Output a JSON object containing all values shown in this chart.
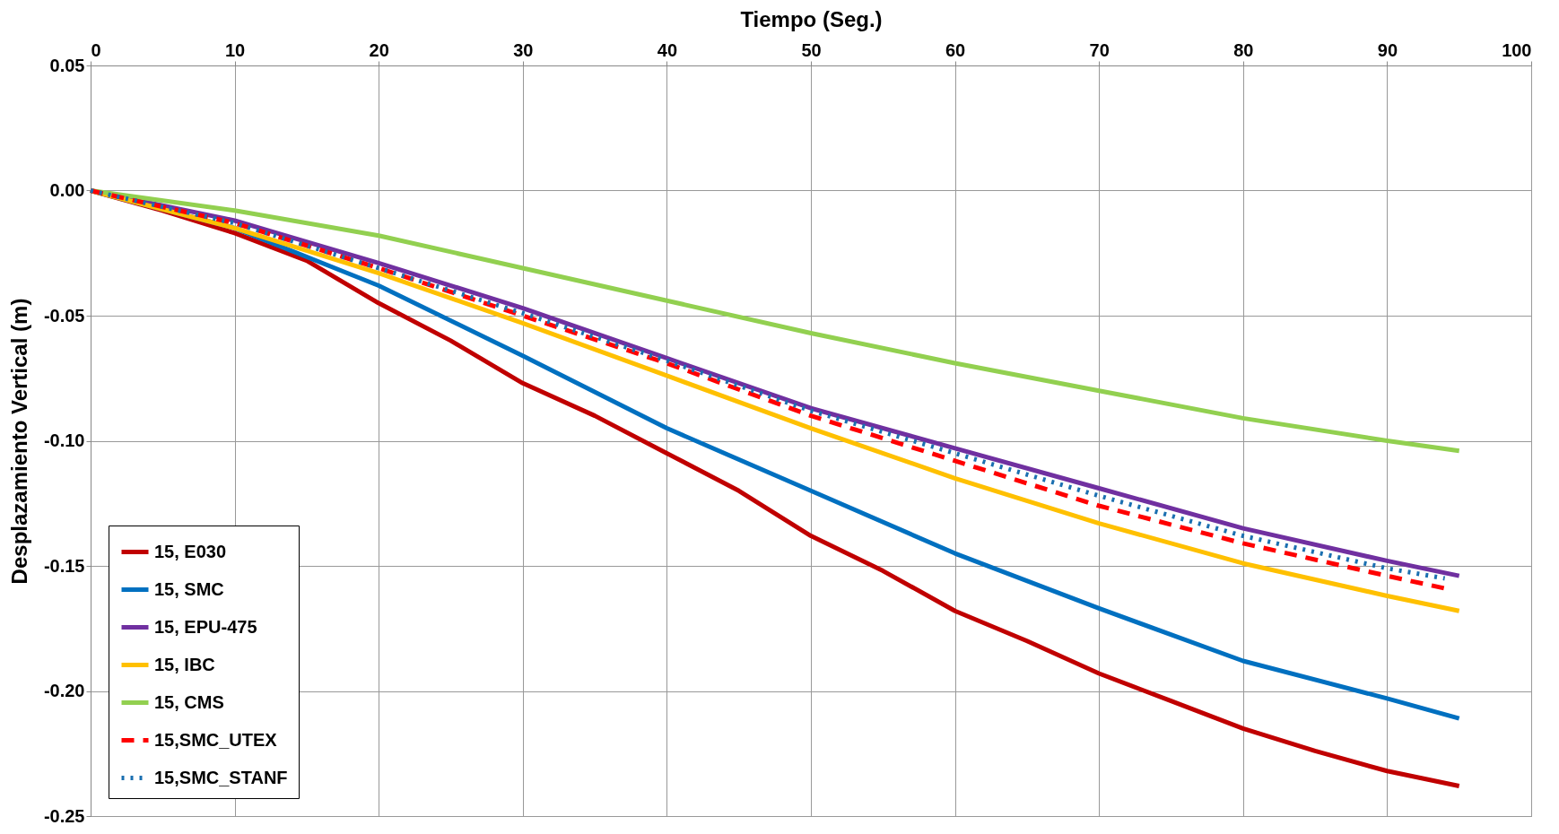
{
  "chart_data": {
    "type": "line",
    "xlabel": "Tiempo (Seg.)",
    "ylabel": "Desplazamiento Vertical (m)",
    "xlim": [
      0,
      100
    ],
    "xticks": [
      0,
      10,
      20,
      30,
      40,
      50,
      60,
      70,
      80,
      90,
      100
    ],
    "ylim": [
      -0.25,
      0.05
    ],
    "yticks": [
      {
        "value": 0.05,
        "label": "0.05"
      },
      {
        "value": 0,
        "label": "0.00"
      },
      {
        "value": -0.05,
        "label": "-0.05"
      },
      {
        "value": -0.1,
        "label": "-0.10"
      },
      {
        "value": -0.15,
        "label": "-0.15"
      },
      {
        "value": -0.2,
        "label": "-0.20"
      },
      {
        "value": -0.25,
        "label": "-0.25"
      }
    ],
    "grid": true,
    "legend": "bottom left",
    "marker": "none",
    "series": [
      {
        "name": "15, E030",
        "color": "#c00000",
        "line_style": "solid",
        "x": [
          0,
          5,
          10,
          15,
          20,
          25,
          30,
          35,
          40,
          45,
          50,
          55,
          60,
          65,
          70,
          75,
          80,
          85,
          90,
          95
        ],
        "values": [
          0,
          -0.008,
          -0.017,
          -0.028,
          -0.045,
          -0.06,
          -0.077,
          -0.09,
          -0.105,
          -0.12,
          -0.138,
          -0.152,
          -0.168,
          -0.18,
          -0.193,
          -0.204,
          -0.215,
          -0.224,
          -0.232,
          -0.238
        ]
      },
      {
        "name": "15, SMC",
        "color": "#0070c0",
        "line_style": "solid",
        "x": [
          0,
          10,
          20,
          30,
          40,
          50,
          60,
          70,
          80,
          90,
          95
        ],
        "values": [
          0,
          -0.015,
          -0.038,
          -0.066,
          -0.095,
          -0.12,
          -0.145,
          -0.167,
          -0.188,
          -0.203,
          -0.211
        ]
      },
      {
        "name": "15, EPU-475",
        "color": "#7030a0",
        "line_style": "solid",
        "x": [
          0,
          10,
          20,
          30,
          40,
          50,
          60,
          70,
          80,
          90,
          95
        ],
        "values": [
          0,
          -0.012,
          -0.029,
          -0.047,
          -0.067,
          -0.087,
          -0.103,
          -0.119,
          -0.135,
          -0.148,
          -0.154
        ]
      },
      {
        "name": "15, IBC",
        "color": "#ffc000",
        "line_style": "solid",
        "x": [
          0,
          10,
          20,
          30,
          40,
          50,
          60,
          70,
          80,
          90,
          95
        ],
        "values": [
          0,
          -0.015,
          -0.033,
          -0.053,
          -0.074,
          -0.095,
          -0.115,
          -0.133,
          -0.149,
          -0.162,
          -0.168
        ]
      },
      {
        "name": "15, CMS",
        "color": "#92d050",
        "line_style": "solid",
        "x": [
          0,
          10,
          20,
          30,
          40,
          50,
          60,
          70,
          80,
          90,
          95
        ],
        "values": [
          0,
          -0.008,
          -0.018,
          -0.031,
          -0.044,
          -0.057,
          -0.069,
          -0.08,
          -0.091,
          -0.1,
          -0.104
        ]
      },
      {
        "name": "15,SMC_UTEX",
        "color": "#ff0000",
        "line_style": "dashed",
        "x": [
          0,
          10,
          20,
          30,
          40,
          50,
          60,
          70,
          80,
          90,
          94
        ],
        "values": [
          0,
          -0.013,
          -0.031,
          -0.05,
          -0.069,
          -0.09,
          -0.108,
          -0.126,
          -0.141,
          -0.154,
          -0.159
        ]
      },
      {
        "name": "15,SMC_STANF",
        "color": "#1a6fb0",
        "line_style": "dotted",
        "x": [
          0,
          10,
          20,
          30,
          40,
          50,
          60,
          70,
          80,
          90,
          94
        ],
        "values": [
          0,
          -0.013,
          -0.031,
          -0.049,
          -0.068,
          -0.088,
          -0.105,
          -0.122,
          -0.138,
          -0.151,
          -0.155
        ]
      }
    ]
  }
}
